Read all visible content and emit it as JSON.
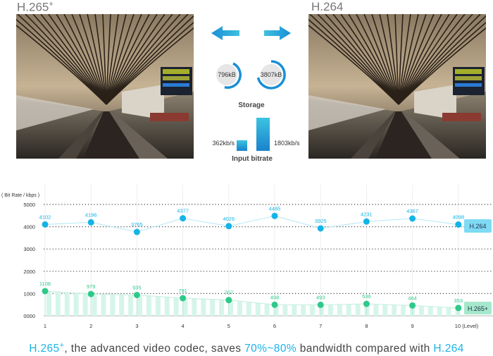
{
  "header": {
    "left_codec": "H.265",
    "left_codec_sup": "+",
    "right_codec": "H.264"
  },
  "comparison": {
    "storage_label": "Storage",
    "storage_h265": "796kB",
    "storage_h264": "3807kB",
    "bitrate_label": "Input bitrate",
    "bitrate_h265": "362kb/s",
    "bitrate_h264": "1803kb/s",
    "colors": {
      "accent": "#1a8fd6",
      "circle_fill": "#e6e6e6"
    }
  },
  "chart_data": {
    "type": "line",
    "ylabel": "( Bit Rate / kbps )",
    "xlabel": "(Level)",
    "ylim": [
      0,
      5000
    ],
    "y_ticks": [
      "0000",
      "1000",
      "2000",
      "3000",
      "4000",
      "5000"
    ],
    "x": [
      1,
      2,
      3,
      4,
      5,
      6,
      7,
      8,
      9,
      10
    ],
    "x_tick_labels": [
      "1",
      "2",
      "3",
      "4",
      "5",
      "6",
      "7",
      "8",
      "9",
      "10"
    ],
    "grid": "horizontal dotted",
    "series": [
      {
        "name": "H.264",
        "color": "#14b4e6",
        "values": [
          4102,
          4196,
          3765,
          4377,
          4026,
          4485,
          3925,
          4231,
          4367,
          4098
        ]
      },
      {
        "name": "H.265+",
        "color": "#2ec98a",
        "values": [
          1108,
          979,
          935,
          791,
          707,
          498,
          493,
          536,
          464,
          353
        ]
      }
    ],
    "series_label_colors": {
      "H.264": "#7fdaf4",
      "H.265+": "#a6e8cd"
    }
  },
  "caption": {
    "part1": "H.265",
    "part1_sup": "+",
    "part2": ", the advanced video codec, saves ",
    "part3": "70%~80%",
    "part4": " bandwidth compared with ",
    "part5": "H.264"
  }
}
